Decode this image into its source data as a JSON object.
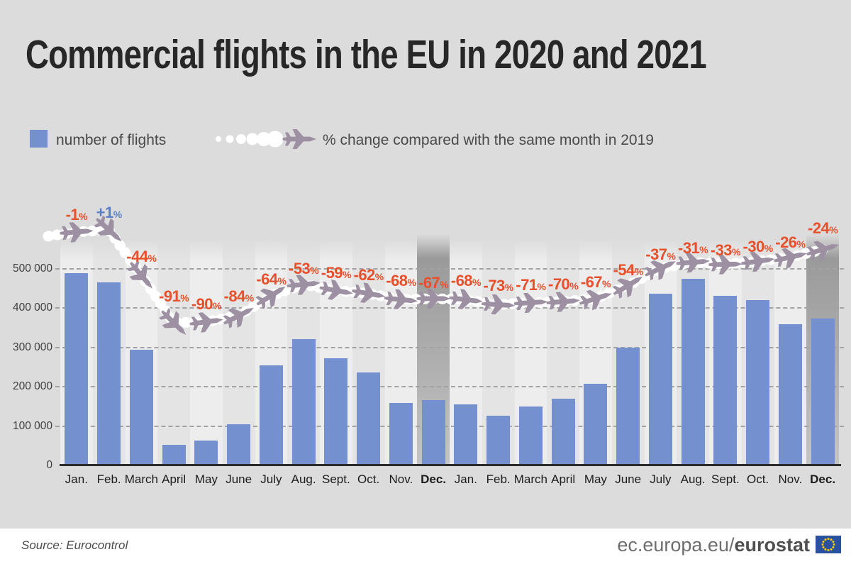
{
  "title": "Commercial flights in the EU in 2020 and 2021",
  "legend": {
    "bars_label": "number of flights",
    "line_label": "% change compared with the same month in 2019"
  },
  "footer": {
    "source": "Source: Eurocontrol",
    "site_prefix": "ec.europa.eu/",
    "site_bold": "eurostat"
  },
  "colors": {
    "background": "#dcdcdc",
    "bar": "#7590cf",
    "pct_negative": "#e8502b",
    "pct_positive": "#5b7fc7",
    "plane": "#9c90a2",
    "trail": "#ffffff",
    "stripe_light": "#ededed",
    "stripe_mid": "#e4e4e4",
    "highlight_top": "#9a9a9a",
    "highlight_bottom": "#c4c4c4",
    "gridline": "#a3a3a3",
    "axis": "#2b2b2b"
  },
  "chart_data": {
    "type": "bar+line",
    "title": "Commercial flights in the EU in 2020 and 2021",
    "ylabel": "number of flights",
    "ylim": [
      0,
      560000
    ],
    "grid": "horizontal-dashed",
    "y_ticks": [
      {
        "value": 500000,
        "label": "500 000"
      },
      {
        "value": 400000,
        "label": "400 000"
      },
      {
        "value": 300000,
        "label": "300 000"
      },
      {
        "value": 200000,
        "label": "200 000"
      },
      {
        "value": 100000,
        "label": "100 000"
      },
      {
        "value": 0,
        "label": "0"
      }
    ],
    "categories": [
      {
        "label": "Jan.",
        "year": 2020,
        "bold": false,
        "highlight": false
      },
      {
        "label": "Feb.",
        "year": 2020,
        "bold": false,
        "highlight": false
      },
      {
        "label": "March",
        "year": 2020,
        "bold": false,
        "highlight": false
      },
      {
        "label": "April",
        "year": 2020,
        "bold": false,
        "highlight": false
      },
      {
        "label": "May",
        "year": 2020,
        "bold": false,
        "highlight": false
      },
      {
        "label": "June",
        "year": 2020,
        "bold": false,
        "highlight": false
      },
      {
        "label": "July",
        "year": 2020,
        "bold": false,
        "highlight": false
      },
      {
        "label": "Aug.",
        "year": 2020,
        "bold": false,
        "highlight": false
      },
      {
        "label": "Sept.",
        "year": 2020,
        "bold": false,
        "highlight": false
      },
      {
        "label": "Oct.",
        "year": 2020,
        "bold": false,
        "highlight": false
      },
      {
        "label": "Nov.",
        "year": 2020,
        "bold": false,
        "highlight": false
      },
      {
        "label": "Dec.",
        "year": 2020,
        "bold": true,
        "highlight": true
      },
      {
        "label": "Jan.",
        "year": 2021,
        "bold": false,
        "highlight": false
      },
      {
        "label": "Feb.",
        "year": 2021,
        "bold": false,
        "highlight": false
      },
      {
        "label": "March",
        "year": 2021,
        "bold": false,
        "highlight": false
      },
      {
        "label": "April",
        "year": 2021,
        "bold": false,
        "highlight": false
      },
      {
        "label": "May",
        "year": 2021,
        "bold": false,
        "highlight": false
      },
      {
        "label": "June",
        "year": 2021,
        "bold": false,
        "highlight": false
      },
      {
        "label": "July",
        "year": 2021,
        "bold": false,
        "highlight": false
      },
      {
        "label": "Aug.",
        "year": 2021,
        "bold": false,
        "highlight": false
      },
      {
        "label": "Sept.",
        "year": 2021,
        "bold": false,
        "highlight": false
      },
      {
        "label": "Oct.",
        "year": 2021,
        "bold": false,
        "highlight": false
      },
      {
        "label": "Nov.",
        "year": 2021,
        "bold": false,
        "highlight": false
      },
      {
        "label": "Dec.",
        "year": 2021,
        "bold": true,
        "highlight": true
      }
    ],
    "series": [
      {
        "name": "number of flights",
        "type": "bar",
        "values": [
          490000,
          465000,
          295000,
          52000,
          63000,
          105000,
          255000,
          322000,
          272000,
          237000,
          158000,
          166000,
          155000,
          126000,
          150000,
          170000,
          208000,
          300000,
          437000,
          475000,
          432000,
          420000,
          360000,
          373000
        ]
      },
      {
        "name": "% change compared with the same month in 2019",
        "type": "line-planes",
        "values": [
          -1,
          1,
          -44,
          -91,
          -90,
          -84,
          -64,
          -53,
          -59,
          -62,
          -68,
          -67,
          -68,
          -73,
          -71,
          -70,
          -67,
          -54,
          -37,
          -31,
          -33,
          -30,
          -26,
          -24
        ],
        "labels": [
          "-1",
          "+1",
          "-44",
          "-91",
          "-90",
          "-84",
          "-64",
          "-53",
          "-59",
          "-62",
          "-68",
          "-67",
          "-68",
          "-73",
          "-71",
          "-70",
          "-67",
          "-54",
          "-37",
          "-31",
          "-33",
          "-30",
          "-26",
          "-24"
        ],
        "label_rise": [
          25,
          25,
          27,
          38,
          26,
          28,
          24,
          23,
          26,
          27,
          27,
          23,
          27,
          27,
          26,
          25,
          24,
          22,
          20,
          21,
          21,
          21,
          22,
          31
        ]
      }
    ]
  }
}
